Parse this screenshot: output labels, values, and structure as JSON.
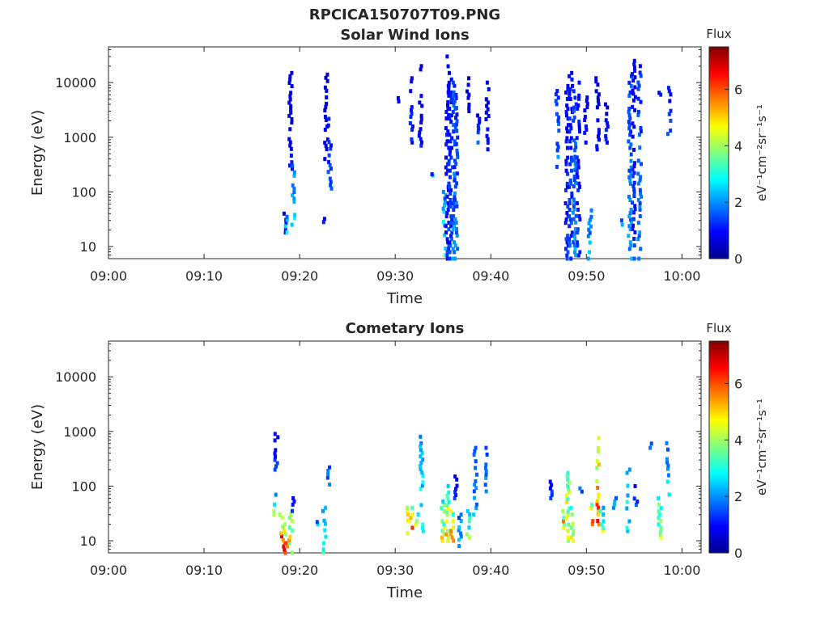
{
  "figure": {
    "title": "RPCICA150707T09.PNG"
  },
  "charts": [
    {
      "title": "Solar Wind Ions",
      "xlabel": "Time",
      "ylabel": "Energy (eV)",
      "colorbar": {
        "title": "Flux",
        "label": "eV⁻¹cm⁻²sr⁻¹s⁻¹",
        "ticks": [
          "0",
          "2",
          "4",
          "6"
        ]
      },
      "x_ticks": [
        "09:00",
        "09:10",
        "09:20",
        "09:30",
        "09:40",
        "09:50",
        "10:00"
      ],
      "y_ticks": [
        "10",
        "100",
        "1000",
        "10000"
      ]
    },
    {
      "title": "Cometary Ions",
      "xlabel": "Time",
      "ylabel": "Energy (eV)",
      "colorbar": {
        "title": "Flux",
        "label": "eV⁻¹cm⁻²sr⁻¹s⁻¹",
        "ticks": [
          "0",
          "2",
          "4",
          "6"
        ]
      },
      "x_ticks": [
        "09:00",
        "09:10",
        "09:20",
        "09:30",
        "09:40",
        "09:50",
        "10:00"
      ],
      "y_ticks": [
        "10",
        "100",
        "1000",
        "10000"
      ]
    }
  ],
  "chart_data": [
    {
      "type": "heatmap",
      "title": "Solar Wind Ions",
      "xlabel": "Time",
      "ylabel": "Energy (eV)",
      "xlim": [
        "09:00",
        "10:02"
      ],
      "ylim_eV": [
        6,
        45000
      ],
      "y_scale": "log",
      "colorbar_range": [
        0,
        7.5
      ],
      "colormap": "jet",
      "grid": false,
      "burst_columns_min_eV_max_eV_flux": [
        [
          18.3,
          18,
          40,
          1.2
        ],
        [
          18.4,
          18,
          40,
          2.5
        ],
        [
          18.9,
          200,
          15000,
          1.0
        ],
        [
          19.2,
          25,
          300,
          2.5
        ],
        [
          22.4,
          28,
          32,
          1.0
        ],
        [
          22.6,
          400,
          14000,
          0.8
        ],
        [
          23.0,
          100,
          2500,
          1.5
        ],
        [
          30.1,
          4500,
          5200,
          1.0
        ],
        [
          31.5,
          800,
          12000,
          1.2
        ],
        [
          32.5,
          700,
          20000,
          1.0
        ],
        [
          33.8,
          200,
          210,
          2.2
        ],
        [
          35.0,
          6,
          100,
          3.0
        ],
        [
          35.3,
          6,
          30000,
          1.2
        ],
        [
          35.6,
          6,
          15000,
          1.4
        ],
        [
          36.0,
          6,
          10000,
          2.0
        ],
        [
          36.2,
          6,
          9000,
          1.8
        ],
        [
          37.5,
          3000,
          12000,
          0.9
        ],
        [
          38.5,
          800,
          2500,
          1.5
        ],
        [
          39.5,
          600,
          10000,
          1.0
        ],
        [
          46.8,
          250,
          7000,
          1.8
        ],
        [
          47.8,
          6,
          15000,
          1.3
        ],
        [
          48.2,
          6,
          15000,
          1.5
        ],
        [
          48.6,
          6,
          8000,
          2.0
        ],
        [
          49.0,
          6,
          10000,
          1.3
        ],
        [
          49.8,
          800,
          8000,
          1.0
        ],
        [
          50.2,
          6,
          60,
          2.3
        ],
        [
          51.0,
          600,
          12000,
          1.0
        ],
        [
          52.0,
          800,
          4000,
          1.2
        ],
        [
          53.6,
          25,
          30,
          2.5
        ],
        [
          54.4,
          6,
          15000,
          2.0
        ],
        [
          54.8,
          6,
          25000,
          1.3
        ],
        [
          55.4,
          6,
          20000,
          1.8
        ],
        [
          57.5,
          6000,
          6500,
          1.0
        ],
        [
          58.5,
          1000,
          8000,
          1.5
        ]
      ]
    },
    {
      "type": "heatmap",
      "title": "Cometary Ions",
      "xlabel": "Time",
      "ylabel": "Energy (eV)",
      "xlim": [
        "09:00",
        "10:02"
      ],
      "ylim_eV": [
        6,
        45000
      ],
      "y_scale": "log",
      "colorbar_range": [
        0,
        7.5
      ],
      "colormap": "jet",
      "grid": false,
      "burst_columns_min_eV_max_eV_flux": [
        [
          17.2,
          30,
          80,
          3.5
        ],
        [
          17.4,
          200,
          900,
          1.3
        ],
        [
          17.9,
          12,
          30,
          5.5
        ],
        [
          18.2,
          6,
          20,
          6.5
        ],
        [
          18.6,
          6,
          12,
          6.2
        ],
        [
          18.9,
          6,
          30,
          5.0
        ],
        [
          19.2,
          35,
          60,
          1.3
        ],
        [
          21.6,
          20,
          22,
          2.5
        ],
        [
          22.4,
          6,
          40,
          3.0
        ],
        [
          22.8,
          80,
          220,
          2.2
        ],
        [
          31.0,
          12,
          40,
          6.0
        ],
        [
          31.5,
          15,
          40,
          5.5
        ],
        [
          32.1,
          15,
          35,
          4.5
        ],
        [
          32.6,
          15,
          800,
          3.0
        ],
        [
          34.8,
          10,
          60,
          4.5
        ],
        [
          35.3,
          10,
          100,
          4.8
        ],
        [
          35.8,
          10,
          40,
          5.2
        ],
        [
          36.2,
          60,
          150,
          1.3
        ],
        [
          36.6,
          8,
          30,
          2.6
        ],
        [
          37.5,
          10,
          40,
          3.5
        ],
        [
          38.2,
          30,
          500,
          2.0
        ],
        [
          39.3,
          80,
          500,
          2.0
        ],
        [
          46.2,
          60,
          120,
          1.5
        ],
        [
          47.5,
          15,
          40,
          5.5
        ],
        [
          47.9,
          10,
          200,
          5.0
        ],
        [
          48.4,
          10,
          40,
          4.5
        ],
        [
          49.2,
          60,
          120,
          2.0
        ],
        [
          50.5,
          20,
          45,
          6.5
        ],
        [
          51.0,
          20,
          1000,
          5.5
        ],
        [
          51.5,
          15,
          40,
          4.0
        ],
        [
          52.8,
          40,
          60,
          2.5
        ],
        [
          54.2,
          10,
          200,
          3.0
        ],
        [
          55.0,
          40,
          100,
          1.5
        ],
        [
          56.5,
          500,
          600,
          2.0
        ],
        [
          57.5,
          10,
          60,
          4.5
        ],
        [
          58.4,
          70,
          800,
          2.5
        ]
      ]
    }
  ]
}
